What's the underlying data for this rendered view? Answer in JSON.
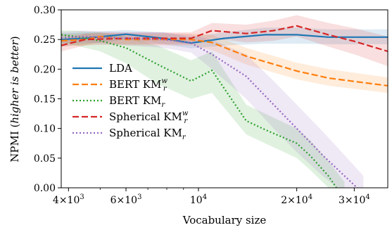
{
  "chart_data": {
    "type": "line",
    "xscale": "log",
    "xlabel": "Vocabulary size",
    "ylabel": "NPMI (higher is better)",
    "ylabel_parts": [
      {
        "text": "NPMI (",
        "italic": false
      },
      {
        "text": "higher is better",
        "italic": true
      },
      {
        "text": ")",
        "italic": false
      }
    ],
    "xlim": [
      3800,
      38000
    ],
    "ylim": [
      0,
      0.3
    ],
    "yticks": [
      0.0,
      0.05,
      0.1,
      0.15,
      0.2,
      0.25,
      0.3
    ],
    "ytick_labels": [
      "0.00",
      "0.05",
      "0.10",
      "0.15",
      "0.20",
      "0.25",
      "0.30"
    ],
    "xticks": [
      {
        "value": 4000,
        "mant": "4",
        "exp": "3"
      },
      {
        "value": 6000,
        "mant": "6",
        "exp": "3"
      },
      {
        "value": 10000,
        "mant": "",
        "exp": "4"
      },
      {
        "value": 20000,
        "mant": "2",
        "exp": "4"
      },
      {
        "value": 30000,
        "mant": "3",
        "exp": "4"
      }
    ],
    "grid": false,
    "legend_position": "center-left",
    "series": [
      {
        "name": "LDA",
        "base": "LDA",
        "sub": "",
        "sup": "",
        "color": "#1f77b4",
        "dash": "solid",
        "x": [
          3800,
          4500,
          6000,
          7800,
          9500,
          12000,
          16000,
          20000,
          25000,
          30000,
          38000
        ],
        "y": [
          0.25,
          0.252,
          0.259,
          0.252,
          0.244,
          0.252,
          0.258,
          0.258,
          0.254,
          0.254,
          0.254
        ],
        "lower": [
          0.238,
          0.242,
          0.25,
          0.242,
          0.235,
          0.24,
          0.243,
          0.243,
          0.242,
          0.242,
          0.242
        ],
        "upper": [
          0.26,
          0.262,
          0.266,
          0.262,
          0.254,
          0.262,
          0.27,
          0.27,
          0.267,
          0.267,
          0.267
        ]
      },
      {
        "name": "BERT KM_r^w",
        "base": "BERT KM",
        "sub": "r",
        "sup": "w",
        "color": "#ff7f0e",
        "dash": "dashed",
        "x": [
          3800,
          4500,
          5000,
          6000,
          7800,
          9500,
          11000,
          14000,
          20000,
          25000,
          38000
        ],
        "y": [
          0.248,
          0.25,
          0.255,
          0.25,
          0.25,
          0.25,
          0.245,
          0.222,
          0.197,
          0.185,
          0.172
        ],
        "lower": [
          0.238,
          0.24,
          0.245,
          0.24,
          0.24,
          0.24,
          0.232,
          0.208,
          0.183,
          0.172,
          0.16
        ],
        "upper": [
          0.258,
          0.26,
          0.262,
          0.26,
          0.26,
          0.26,
          0.258,
          0.236,
          0.211,
          0.2,
          0.186
        ]
      },
      {
        "name": "BERT KM_r",
        "base": "BERT KM",
        "sub": "r",
        "sup": "",
        "color": "#2ca02c",
        "dash": "dotted",
        "x": [
          3800,
          4200,
          5000,
          6000,
          7500,
          9500,
          11000,
          14000,
          16000,
          20000,
          22000,
          25000,
          28000
        ],
        "y": [
          0.258,
          0.255,
          0.248,
          0.236,
          0.208,
          0.18,
          0.198,
          0.113,
          0.098,
          0.075,
          0.054,
          0.02,
          -0.02
        ],
        "lower": [
          0.245,
          0.24,
          0.23,
          0.21,
          0.175,
          0.15,
          0.16,
          0.09,
          0.075,
          0.05,
          0.03,
          0.0,
          -0.05
        ],
        "upper": [
          0.265,
          0.265,
          0.262,
          0.255,
          0.24,
          0.215,
          0.23,
          0.14,
          0.125,
          0.1,
          0.08,
          0.045,
          0.01
        ]
      },
      {
        "name": "Spherical KM_r^w",
        "base": "Spherical KM",
        "sub": "r",
        "sup": "w",
        "color": "#d62728",
        "dash": "dashed",
        "x": [
          3800,
          4500,
          6000,
          7800,
          9500,
          11000,
          14000,
          17000,
          20000,
          25000,
          30000,
          38000
        ],
        "y": [
          0.24,
          0.25,
          0.252,
          0.252,
          0.252,
          0.265,
          0.26,
          0.265,
          0.273,
          0.258,
          0.247,
          0.23
        ],
        "lower": [
          0.23,
          0.24,
          0.242,
          0.242,
          0.242,
          0.252,
          0.245,
          0.248,
          0.255,
          0.238,
          0.225,
          0.205
        ],
        "upper": [
          0.25,
          0.26,
          0.262,
          0.262,
          0.262,
          0.278,
          0.275,
          0.282,
          0.291,
          0.278,
          0.269,
          0.255
        ]
      },
      {
        "name": "Spherical KM_r",
        "base": "Spherical KM",
        "sub": "r",
        "sup": "",
        "color": "#9467bd",
        "dash": "dotted",
        "x": [
          3800,
          4500,
          6000,
          7800,
          9500,
          11000,
          14000,
          17000,
          20000,
          24000,
          28000,
          32000
        ],
        "y": [
          0.253,
          0.255,
          0.252,
          0.25,
          0.244,
          0.225,
          0.188,
          0.14,
          0.1,
          0.055,
          0.02,
          -0.01
        ],
        "lower": [
          0.243,
          0.245,
          0.24,
          0.236,
          0.228,
          0.2,
          0.15,
          0.1,
          0.06,
          0.02,
          -0.01,
          -0.04
        ],
        "upper": [
          0.263,
          0.265,
          0.262,
          0.262,
          0.258,
          0.25,
          0.225,
          0.18,
          0.14,
          0.095,
          0.055,
          0.02
        ]
      }
    ]
  }
}
